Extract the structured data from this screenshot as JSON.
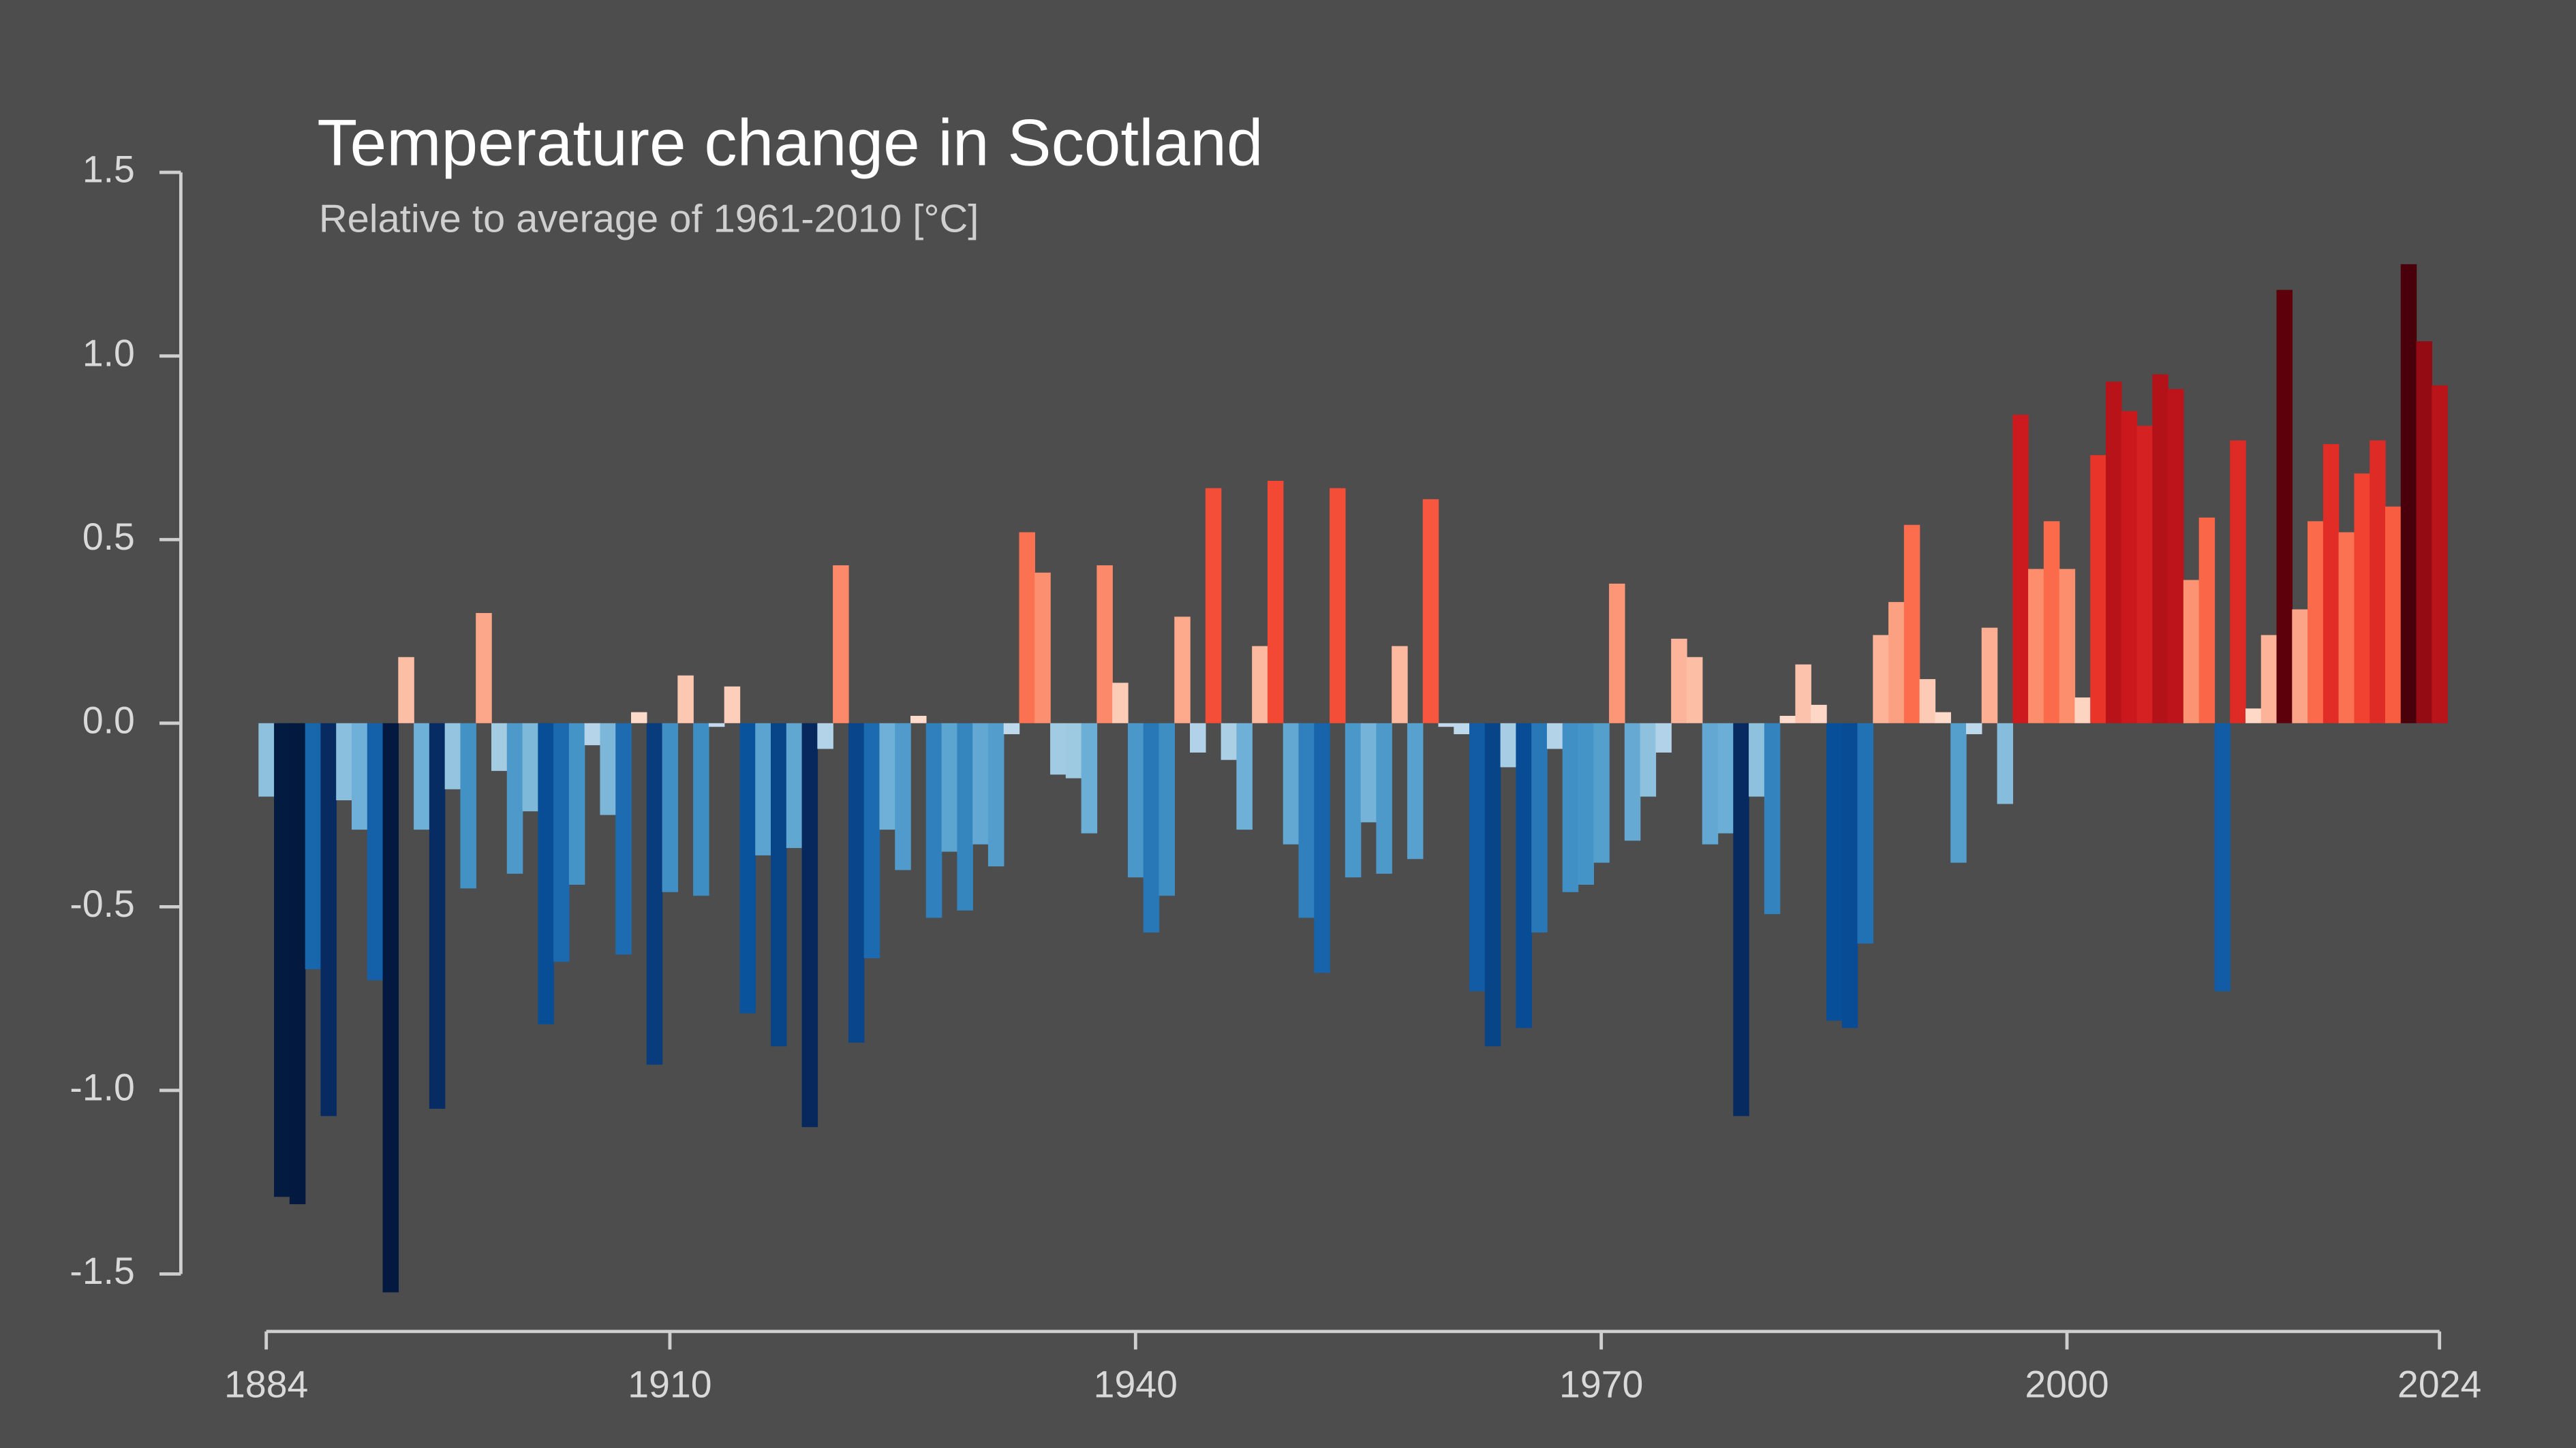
{
  "chart_data": {
    "type": "bar",
    "title": "Temperature change in Scotland",
    "subtitle": "Relative to average of 1961-2010  [°C]",
    "x": [
      1884,
      1885,
      1886,
      1887,
      1888,
      1889,
      1890,
      1891,
      1892,
      1893,
      1894,
      1895,
      1896,
      1897,
      1898,
      1899,
      1900,
      1901,
      1902,
      1903,
      1904,
      1905,
      1906,
      1907,
      1908,
      1909,
      1910,
      1911,
      1912,
      1913,
      1914,
      1915,
      1916,
      1917,
      1918,
      1919,
      1920,
      1921,
      1922,
      1923,
      1924,
      1925,
      1926,
      1927,
      1928,
      1929,
      1930,
      1931,
      1932,
      1933,
      1934,
      1935,
      1936,
      1937,
      1938,
      1939,
      1940,
      1941,
      1942,
      1943,
      1944,
      1945,
      1946,
      1947,
      1948,
      1949,
      1950,
      1951,
      1952,
      1953,
      1954,
      1955,
      1956,
      1957,
      1958,
      1959,
      1960,
      1961,
      1962,
      1963,
      1964,
      1965,
      1966,
      1967,
      1968,
      1969,
      1970,
      1971,
      1972,
      1973,
      1974,
      1975,
      1976,
      1977,
      1978,
      1979,
      1980,
      1981,
      1982,
      1983,
      1984,
      1985,
      1986,
      1987,
      1988,
      1989,
      1990,
      1991,
      1992,
      1993,
      1994,
      1995,
      1996,
      1997,
      1998,
      1999,
      2000,
      2001,
      2002,
      2003,
      2004,
      2005,
      2006,
      2007,
      2008,
      2009,
      2010,
      2011,
      2012,
      2013,
      2014,
      2015,
      2016,
      2017,
      2018,
      2019,
      2020,
      2021,
      2022,
      2023,
      2024
    ],
    "values": [
      -0.2,
      -1.29,
      -1.31,
      -0.67,
      -1.07,
      -0.21,
      -0.29,
      -0.7,
      -1.55,
      0.18,
      -0.29,
      -1.05,
      -0.18,
      -0.45,
      0.3,
      -0.13,
      -0.41,
      -0.24,
      -0.82,
      -0.65,
      -0.44,
      -0.06,
      -0.25,
      -0.63,
      0.03,
      -0.93,
      -0.46,
      0.13,
      -0.47,
      -0.01,
      0.1,
      -0.79,
      -0.36,
      -0.88,
      -0.34,
      -1.1,
      -0.07,
      0.43,
      -0.87,
      -0.64,
      -0.29,
      -0.4,
      0.02,
      -0.53,
      -0.35,
      -0.51,
      -0.33,
      -0.39,
      -0.03,
      0.52,
      0.41,
      -0.14,
      -0.15,
      -0.3,
      0.43,
      0.11,
      -0.42,
      -0.57,
      -0.47,
      0.29,
      -0.08,
      0.64,
      -0.1,
      -0.29,
      0.21,
      0.66,
      -0.33,
      -0.53,
      -0.68,
      0.64,
      -0.42,
      -0.27,
      -0.41,
      0.21,
      -0.37,
      0.61,
      -0.01,
      -0.03,
      -0.73,
      -0.88,
      -0.12,
      -0.83,
      -0.57,
      -0.07,
      -0.46,
      -0.44,
      -0.38,
      0.38,
      -0.32,
      -0.2,
      -0.08,
      0.23,
      0.18,
      -0.33,
      -0.3,
      -1.07,
      -0.2,
      -0.52,
      0.02,
      0.16,
      0.05,
      -0.81,
      -0.83,
      -0.6,
      0.24,
      0.33,
      0.54,
      0.12,
      0.03,
      -0.38,
      -0.03,
      0.26,
      -0.22,
      0.84,
      0.42,
      0.55,
      0.42,
      0.07,
      0.73,
      0.93,
      0.85,
      0.81,
      0.95,
      0.91,
      0.39,
      0.56,
      -0.73,
      0.77,
      0.04,
      0.24,
      1.18,
      0.31,
      0.55,
      0.76,
      0.52,
      0.68,
      0.77,
      0.59,
      1.25,
      1.04,
      0.92
    ],
    "xlim": [
      1884,
      2024
    ],
    "xticks": [
      1884,
      1910,
      1940,
      1970,
      2000,
      2024
    ],
    "ylim": [
      -1.5,
      1.5
    ],
    "yticks": [
      1.5,
      {
        "value": 1,
        "label": "1.0"
      },
      0.5,
      {
        "value": 0,
        "label": "0.0"
      },
      -0.5,
      {
        "value": -1,
        "label": "-1.0"
      },
      -1.5
    ],
    "grid": false
  }
}
